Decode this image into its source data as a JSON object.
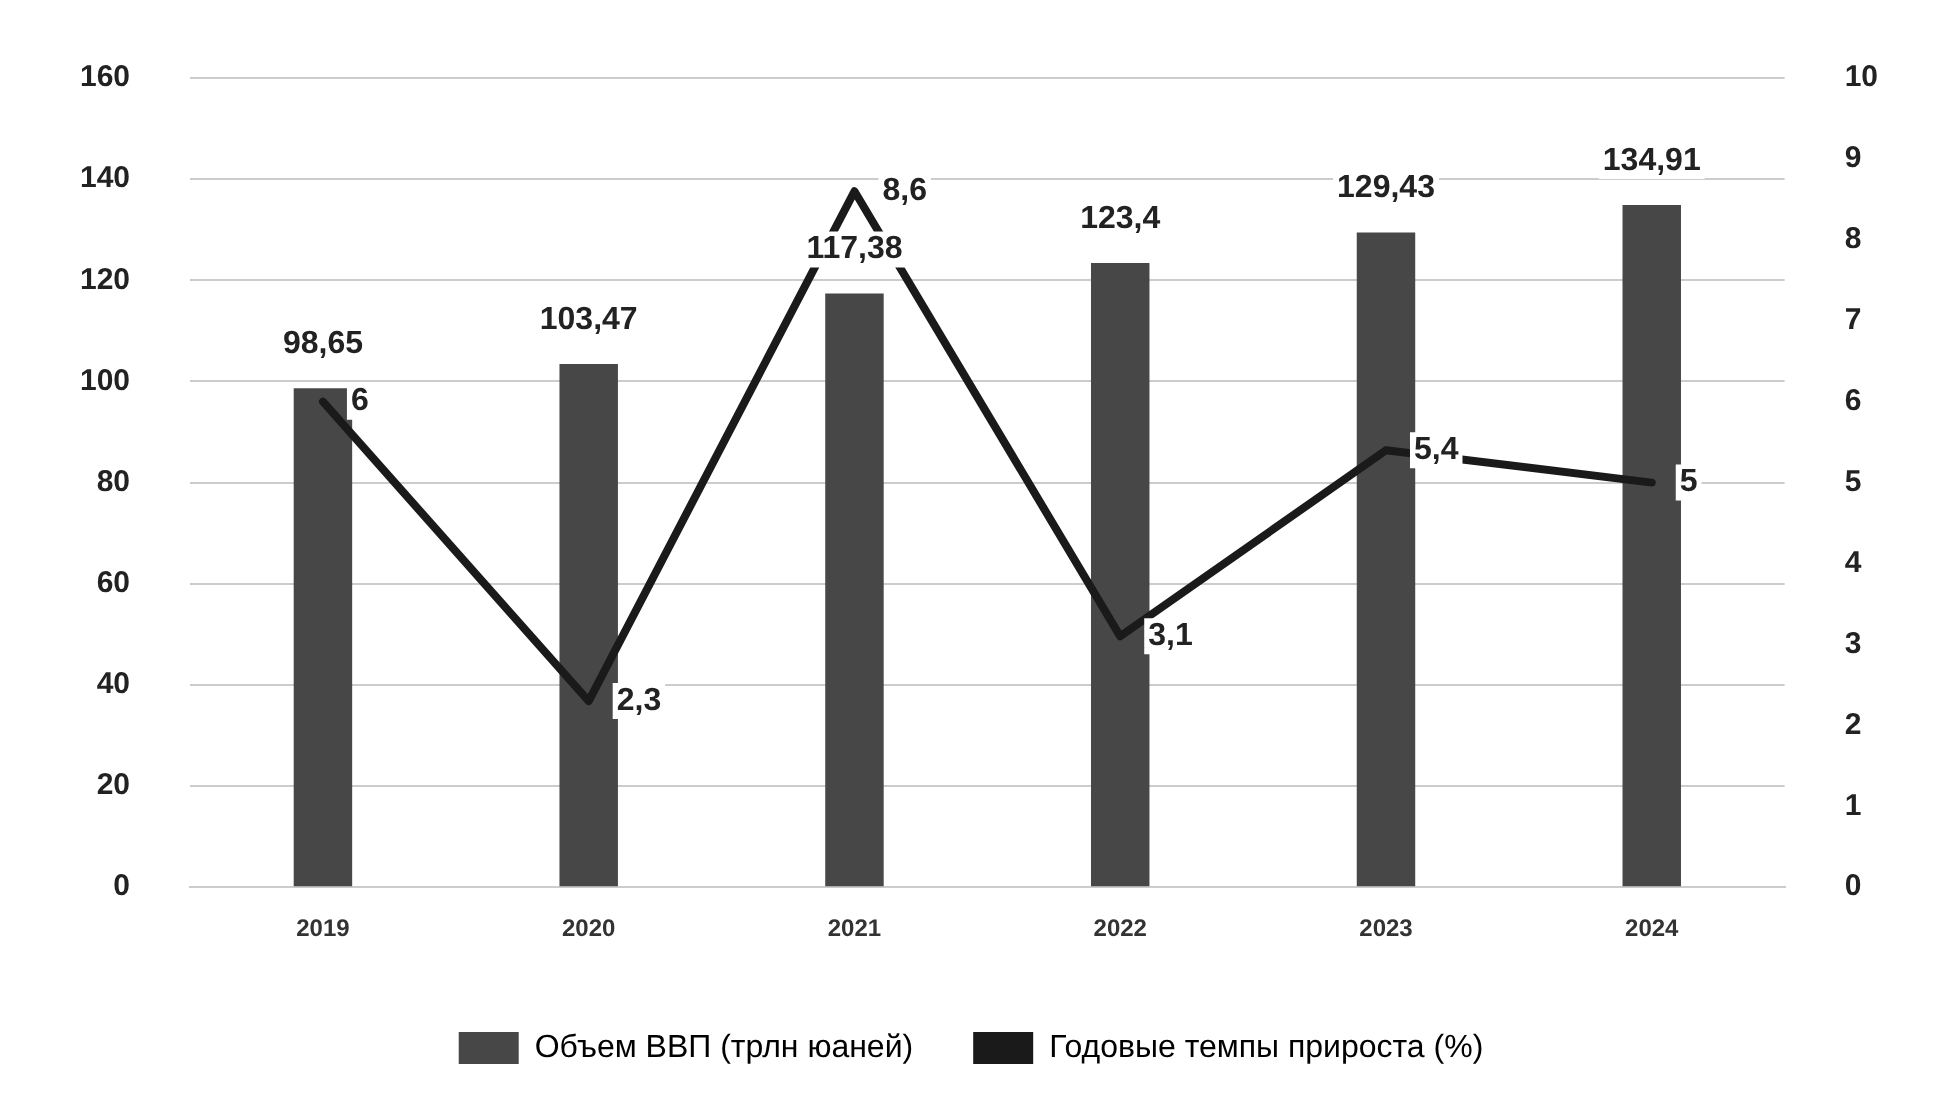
{
  "chart_data": {
    "type": "bar",
    "categories": [
      "2019",
      "2020",
      "2021",
      "2022",
      "2023",
      "2024"
    ],
    "series": [
      {
        "name": "Объем ВВП (трлн юаней)",
        "color": "#474747",
        "values": [
          98.65,
          103.47,
          117.38,
          123.4,
          129.43,
          134.91
        ],
        "value_labels": [
          "98,65",
          "103,47",
          "117,38",
          "123,4",
          "129,43",
          "134,91"
        ]
      },
      {
        "name": "Годовые темпы прироста (%)",
        "type": "line",
        "axis": "y2",
        "color": "#1a1a1a",
        "values": [
          6,
          2.3,
          8.6,
          3.1,
          5.4,
          5
        ],
        "value_labels": [
          "6",
          "2,3",
          "8,6",
          "3,1",
          "5,4",
          "5"
        ]
      }
    ],
    "ylim": [
      0,
      160
    ],
    "yticks": [
      0,
      20,
      40,
      60,
      80,
      100,
      120,
      140,
      160
    ],
    "y2lim": [
      0,
      10
    ],
    "y2ticks": [
      0,
      1,
      2,
      3,
      4,
      5,
      6,
      7,
      8,
      9,
      10
    ],
    "grid": "y",
    "legend": "bottom",
    "marker": "none",
    "line_style": "solid"
  }
}
